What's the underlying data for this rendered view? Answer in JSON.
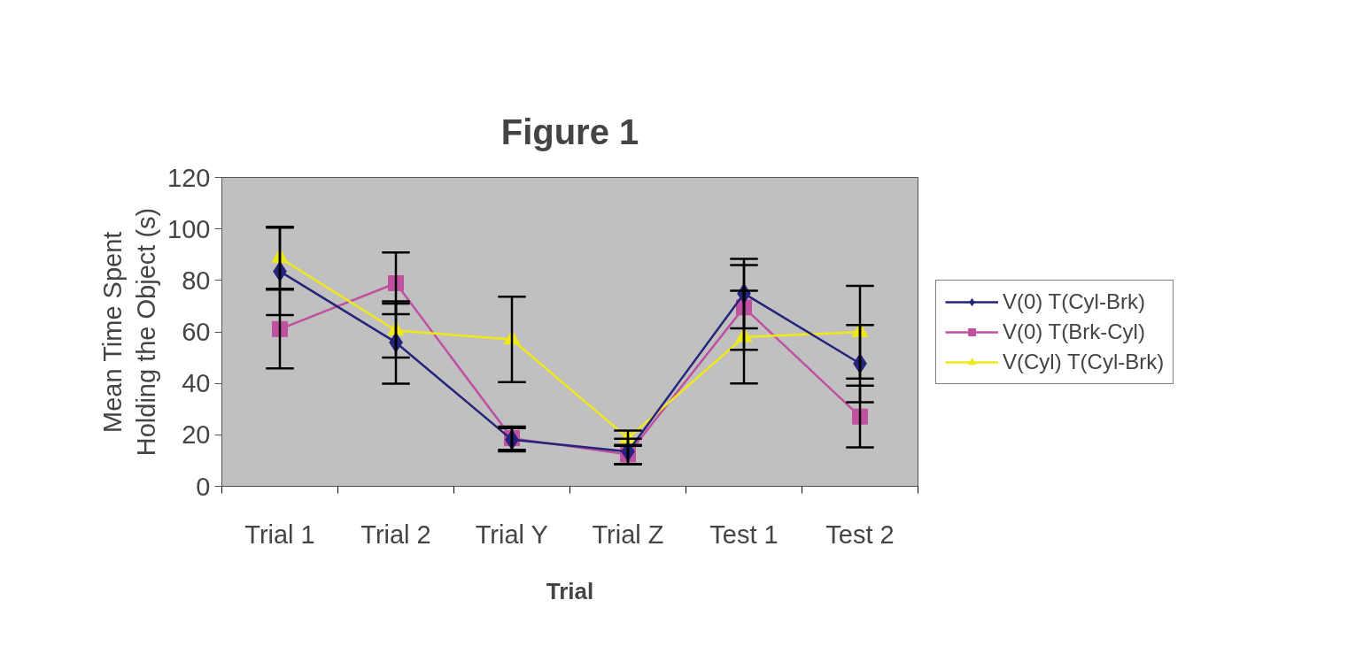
{
  "chart_data": {
    "type": "line",
    "title": "Figure 1",
    "xlabel": "Trial",
    "ylabel": "Mean Time Spent\nHolding the Object (s)",
    "categories": [
      "Trial 1",
      "Trial 2",
      "Trial Y",
      "Trial Z",
      "Test 1",
      "Test 2"
    ],
    "ylim": [
      0,
      120
    ],
    "yticks": [
      0,
      20,
      40,
      60,
      80,
      100,
      120
    ],
    "grid": false,
    "legend": "right",
    "series": [
      {
        "name": "V(0) T(Cyl-Brk)",
        "color": "#24247a",
        "marker": "diamond",
        "values": [
          83.5,
          55.9,
          18.1,
          13.5,
          74.9,
          47.7
        ],
        "errors": [
          17,
          16,
          4.5,
          5,
          13.5,
          15
        ]
      },
      {
        "name": "V(0) T(Brk-Cyl)",
        "color": "#c050a0",
        "marker": "square",
        "values": [
          61.1,
          78.9,
          18.7,
          12.4,
          69.5,
          27.1
        ],
        "errors": [
          15.3,
          12,
          4.5,
          3.7,
          16.5,
          12
        ]
      },
      {
        "name": "V(Cyl) T(Cyl-Brk)",
        "color": "#f0e818",
        "marker": "triangle",
        "values": [
          88.8,
          60.5,
          57.1,
          18.7,
          58.0,
          59.9
        ],
        "errors": [
          12,
          10.5,
          16.6,
          3,
          18,
          18
        ]
      }
    ]
  }
}
